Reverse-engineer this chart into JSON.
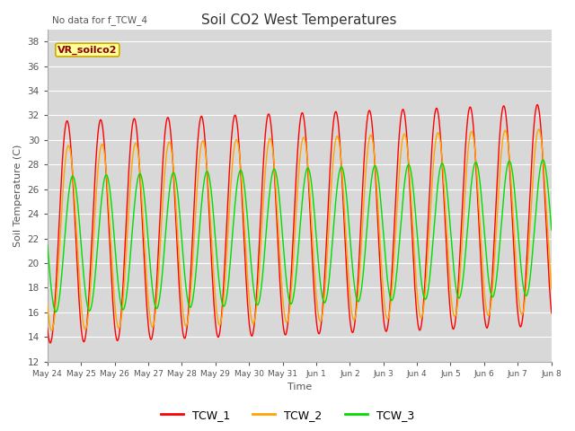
{
  "title": "Soil CO2 West Temperatures",
  "xlabel": "Time",
  "ylabel": "Soil Temperature (C)",
  "ylim": [
    12,
    39
  ],
  "yticks": [
    12,
    14,
    16,
    18,
    20,
    22,
    24,
    26,
    28,
    30,
    32,
    34,
    36,
    38
  ],
  "annotation_text": "No data for f_TCW_4",
  "legend_label": "VR_soilco2",
  "bg_color": "#d8d8d8",
  "line_colors": {
    "TCW_1": "#ff0000",
    "TCW_2": "#ffa500",
    "TCW_3": "#00dd00"
  },
  "legend_entries": [
    "TCW_1",
    "TCW_2",
    "TCW_3"
  ],
  "x_tick_labels": [
    "May 24",
    "May 25",
    "May 26",
    "May 27",
    "May 28",
    "May 29",
    "May 30",
    "May 31",
    "Jun 1",
    "Jun 2",
    "Jun 3",
    "Jun 4",
    "Jun 5",
    "Jun 6",
    "Jun 7",
    "Jun 8"
  ],
  "num_days": 16,
  "samples_per_day": 144
}
